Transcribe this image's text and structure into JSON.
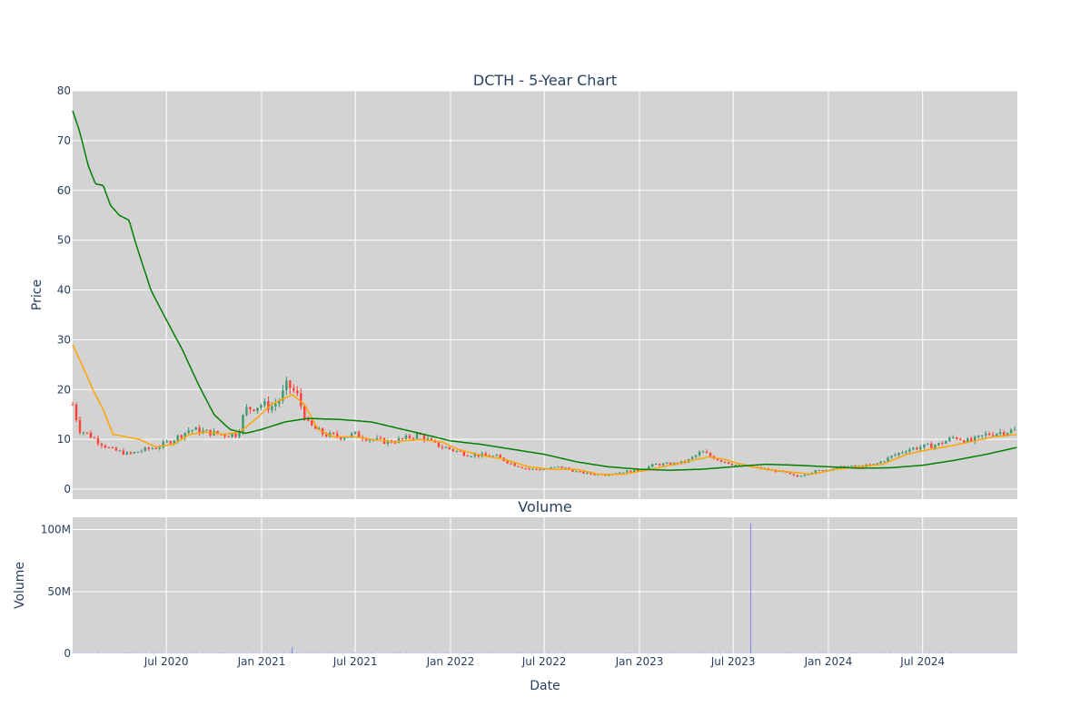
{
  "chart_data": [
    {
      "type": "candlestick",
      "title": "DCTH - 5-Year Chart",
      "ylabel": "Price",
      "ylim": [
        -2,
        80
      ],
      "yticks": [
        0,
        10,
        20,
        30,
        40,
        50,
        60,
        70,
        80
      ],
      "plot_bg": "#d3d3d3",
      "grid": true,
      "colors": {
        "up": "#3d9970",
        "down": "#ff4136",
        "ma_short": "#ffa500",
        "ma_long": "#008000"
      },
      "close_anchors": [
        [
          "2020-01-02",
          17
        ],
        [
          "2020-01-15",
          12
        ],
        [
          "2020-02-01",
          11
        ],
        [
          "2020-02-15",
          10
        ],
        [
          "2020-03-01",
          9
        ],
        [
          "2020-03-15",
          8
        ],
        [
          "2020-04-20",
          7
        ],
        [
          "2020-05-15",
          7.8
        ],
        [
          "2020-06-15",
          8.5
        ],
        [
          "2020-07-15",
          10
        ],
        [
          "2020-08-15",
          12
        ],
        [
          "2020-09-15",
          11.5
        ],
        [
          "2020-10-15",
          11
        ],
        [
          "2020-11-15",
          11
        ],
        [
          "2020-12-01",
          16
        ],
        [
          "2021-01-01",
          17
        ],
        [
          "2021-01-20",
          16.5
        ],
        [
          "2021-02-05",
          18
        ],
        [
          "2021-02-20",
          21
        ],
        [
          "2021-03-10",
          19
        ],
        [
          "2021-04-01",
          13
        ],
        [
          "2021-05-01",
          11
        ],
        [
          "2021-06-01",
          10.5
        ],
        [
          "2021-07-01",
          11
        ],
        [
          "2021-08-01",
          10
        ],
        [
          "2021-09-01",
          9.5
        ],
        [
          "2021-10-01",
          10
        ],
        [
          "2021-11-01",
          11
        ],
        [
          "2021-12-01",
          9
        ],
        [
          "2022-01-01",
          8
        ],
        [
          "2022-02-01",
          7
        ],
        [
          "2022-03-01",
          6.8
        ],
        [
          "2022-04-01",
          6.5
        ],
        [
          "2022-05-01",
          5
        ],
        [
          "2022-06-01",
          4
        ],
        [
          "2022-07-01",
          4
        ],
        [
          "2022-08-01",
          4.5
        ],
        [
          "2022-09-01",
          3.5
        ],
        [
          "2022-10-01",
          3
        ],
        [
          "2022-11-01",
          3
        ],
        [
          "2022-12-01",
          3.5
        ],
        [
          "2023-01-01",
          3.8
        ],
        [
          "2023-02-01",
          5
        ],
        [
          "2023-03-01",
          5
        ],
        [
          "2023-04-01",
          5.5
        ],
        [
          "2023-05-01",
          7.5
        ],
        [
          "2023-06-01",
          6
        ],
        [
          "2023-07-01",
          5
        ],
        [
          "2023-08-01",
          4.5
        ],
        [
          "2023-09-01",
          4
        ],
        [
          "2023-10-01",
          3.5
        ],
        [
          "2023-11-01",
          2.5
        ],
        [
          "2023-12-01",
          3.5
        ],
        [
          "2024-01-01",
          4
        ],
        [
          "2024-02-01",
          4.5
        ],
        [
          "2024-03-01",
          4.5
        ],
        [
          "2024-04-01",
          5
        ],
        [
          "2024-05-01",
          6.5
        ],
        [
          "2024-06-01",
          8
        ],
        [
          "2024-07-01",
          8.5
        ],
        [
          "2024-08-01",
          9
        ],
        [
          "2024-09-01",
          10.5
        ],
        [
          "2024-10-01",
          9.5
        ],
        [
          "2024-11-01",
          11
        ],
        [
          "2024-12-01",
          11.5
        ],
        [
          "2024-12-31",
          11.8
        ]
      ],
      "ma_short_anchors": [
        [
          "2020-01-02",
          29
        ],
        [
          "2020-01-20",
          25
        ],
        [
          "2020-02-10",
          20
        ],
        [
          "2020-03-01",
          16
        ],
        [
          "2020-03-20",
          11
        ],
        [
          "2020-05-10",
          10
        ],
        [
          "2020-06-10",
          8.5
        ],
        [
          "2020-07-15",
          9
        ],
        [
          "2020-08-15",
          11
        ],
        [
          "2020-09-15",
          11.5
        ],
        [
          "2020-10-20",
          11
        ],
        [
          "2020-11-20",
          11.5
        ],
        [
          "2020-12-20",
          14
        ],
        [
          "2021-01-20",
          17
        ],
        [
          "2021-03-01",
          19
        ],
        [
          "2021-03-25",
          17
        ],
        [
          "2021-04-20",
          12
        ],
        [
          "2021-05-20",
          10.5
        ],
        [
          "2021-07-01",
          10.5
        ],
        [
          "2021-08-01",
          10
        ],
        [
          "2021-09-15",
          9.5
        ],
        [
          "2021-11-01",
          10
        ],
        [
          "2021-12-15",
          9.5
        ],
        [
          "2022-01-15",
          8
        ],
        [
          "2022-03-01",
          6.8
        ],
        [
          "2022-04-15",
          6
        ],
        [
          "2022-06-01",
          4.5
        ],
        [
          "2022-07-15",
          4
        ],
        [
          "2022-09-01",
          4
        ],
        [
          "2022-10-15",
          3
        ],
        [
          "2022-12-01",
          3
        ],
        [
          "2023-01-15",
          3.8
        ],
        [
          "2023-02-15",
          4.5
        ],
        [
          "2023-04-01",
          5.5
        ],
        [
          "2023-05-15",
          6.5
        ],
        [
          "2023-06-15",
          6
        ],
        [
          "2023-07-15",
          5
        ],
        [
          "2023-09-01",
          4
        ],
        [
          "2023-10-15",
          3.5
        ],
        [
          "2023-12-01",
          3
        ],
        [
          "2024-01-15",
          4
        ],
        [
          "2024-03-01",
          4.5
        ],
        [
          "2024-04-15",
          5
        ],
        [
          "2024-06-01",
          7
        ],
        [
          "2024-07-15",
          8
        ],
        [
          "2024-08-15",
          8.5
        ],
        [
          "2024-10-01",
          9.5
        ],
        [
          "2024-11-15",
          10.5
        ],
        [
          "2024-12-31",
          11
        ]
      ],
      "ma_long_anchors": [
        [
          "2020-01-02",
          76
        ],
        [
          "2020-01-15",
          72
        ],
        [
          "2020-02-01",
          65
        ],
        [
          "2020-02-15",
          61.3
        ],
        [
          "2020-03-01",
          61
        ],
        [
          "2020-03-15",
          57
        ],
        [
          "2020-04-01",
          55
        ],
        [
          "2020-04-20",
          54
        ],
        [
          "2020-05-01",
          50
        ],
        [
          "2020-06-01",
          40
        ],
        [
          "2020-07-01",
          34
        ],
        [
          "2020-08-01",
          28
        ],
        [
          "2020-09-01",
          21
        ],
        [
          "2020-10-01",
          15
        ],
        [
          "2020-11-01",
          12
        ],
        [
          "2020-12-01",
          11.2
        ],
        [
          "2021-01-01",
          12
        ],
        [
          "2021-02-15",
          13.5
        ],
        [
          "2021-04-01",
          14.2
        ],
        [
          "2021-06-01",
          14
        ],
        [
          "2021-08-01",
          13.5
        ],
        [
          "2021-10-01",
          12
        ],
        [
          "2021-12-01",
          10.5
        ],
        [
          "2022-01-01",
          9.7
        ],
        [
          "2022-03-01",
          9
        ],
        [
          "2022-05-01",
          8
        ],
        [
          "2022-07-01",
          7
        ],
        [
          "2022-09-01",
          5.5
        ],
        [
          "2022-11-01",
          4.5
        ],
        [
          "2023-01-01",
          4
        ],
        [
          "2023-03-01",
          3.8
        ],
        [
          "2023-05-01",
          4
        ],
        [
          "2023-07-01",
          4.5
        ],
        [
          "2023-09-01",
          5
        ],
        [
          "2023-11-01",
          4.8
        ],
        [
          "2024-01-01",
          4.5
        ],
        [
          "2024-03-01",
          4.2
        ],
        [
          "2024-05-01",
          4.3
        ],
        [
          "2024-07-01",
          4.8
        ],
        [
          "2024-09-01",
          5.8
        ],
        [
          "2024-11-01",
          7
        ],
        [
          "2024-12-31",
          8.4
        ]
      ]
    },
    {
      "type": "bar",
      "title": "Volume",
      "ylabel": "Volume",
      "yticks": [
        0,
        50000000,
        100000000
      ],
      "yticklabels": [
        "0",
        "50M",
        "100M"
      ],
      "ylim": [
        0,
        110000000
      ],
      "xlabel": "Date",
      "xticks": [
        "2020-07-01",
        "2021-01-01",
        "2021-07-01",
        "2022-01-01",
        "2022-07-01",
        "2023-01-01",
        "2023-07-01",
        "2024-01-01",
        "2024-07-01"
      ],
      "xticklabels": [
        "Jul 2020",
        "Jan 2021",
        "Jul 2021",
        "Jan 2022",
        "Jul 2022",
        "Jan 2023",
        "Jul 2023",
        "Jan 2024",
        "Jul 2024"
      ],
      "xrange": [
        "2020-01-02",
        "2024-12-31"
      ],
      "bar_color": "#6f6fff",
      "spikes": [
        [
          "2021-03-01",
          5000000
        ],
        [
          "2023-08-04",
          105000000
        ]
      ],
      "baseline_volume": 600000
    }
  ]
}
